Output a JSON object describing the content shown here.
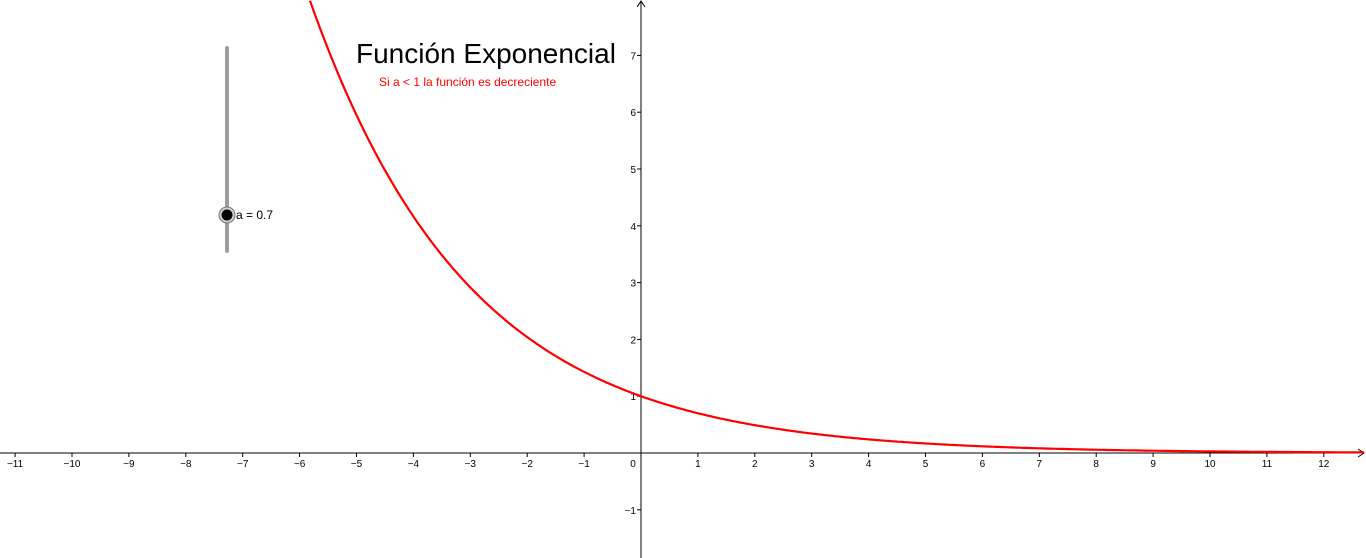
{
  "title": "Función Exponencial",
  "subtitle": "Si a < 1 la función es decreciente",
  "slider": {
    "name": "a",
    "value": 0.7,
    "min": 0,
    "max": 2,
    "label": "a = 0.7"
  },
  "colors": {
    "curve": "#ff0000",
    "subtitle": "#ff0000",
    "axis": "#000000",
    "slider_track": "#9e9e9e",
    "slider_knob": "#000000"
  },
  "chart_data": {
    "type": "line",
    "function": "y = a^x",
    "series": [
      {
        "name": "",
        "a": 0.7
      }
    ],
    "xlim": [
      -11.3,
      12.7
    ],
    "ylim": [
      -1.8,
      7.9
    ],
    "x_ticks": [
      "−11",
      "−10",
      "−9",
      "−8",
      "−7",
      "−6",
      "−5",
      "−4",
      "−3",
      "−2",
      "−1",
      "0",
      "1",
      "2",
      "3",
      "4",
      "5",
      "6",
      "7",
      "8",
      "9",
      "10",
      "11",
      "12"
    ],
    "y_ticks": [
      "−1",
      "1",
      "2",
      "3",
      "4",
      "5",
      "6",
      "7"
    ],
    "grid": false
  }
}
